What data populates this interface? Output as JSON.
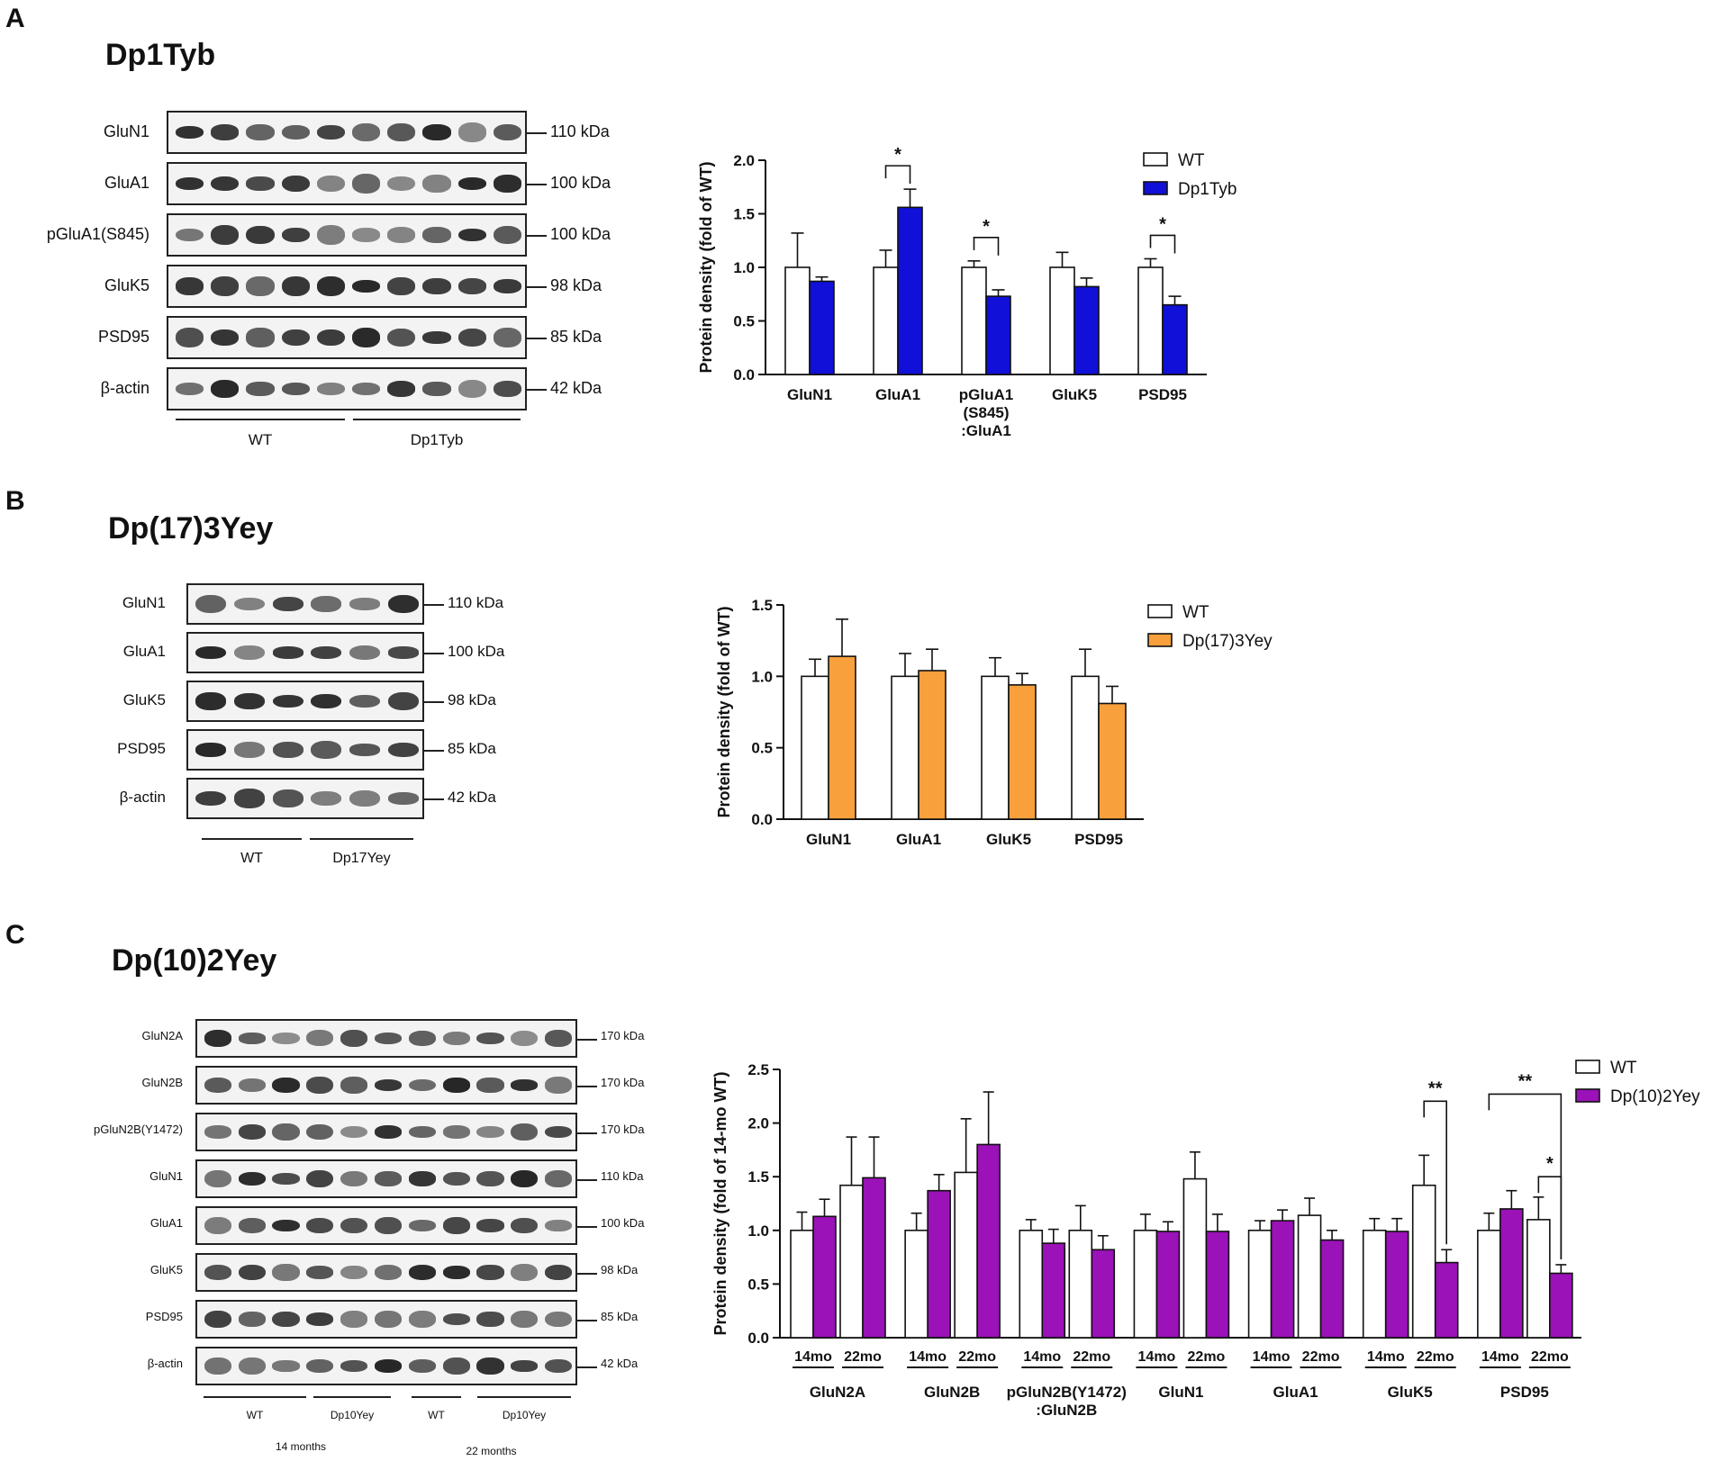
{
  "panels": {
    "A": {
      "letter": "A",
      "title": "Dp1Tyb"
    },
    "B": {
      "letter": "B",
      "title": "Dp(17)3Yey"
    },
    "C": {
      "letter": "C",
      "title": "Dp(10)2Yey"
    }
  },
  "blots": {
    "A": {
      "rows": [
        {
          "label": "GluN1",
          "kda": "110 kDa"
        },
        {
          "label": "GluA1",
          "kda": "100 kDa"
        },
        {
          "label": "pGluA1(S845)",
          "kda": "100 kDa"
        },
        {
          "label": "GluK5",
          "kda": "98 kDa"
        },
        {
          "label": "PSD95",
          "kda": "85 kDa"
        },
        {
          "label": "β-actin",
          "kda": "42 kDa"
        }
      ],
      "groups": [
        "WT",
        "Dp1Tyb"
      ]
    },
    "B": {
      "rows": [
        {
          "label": "GluN1",
          "kda": "110 kDa"
        },
        {
          "label": "GluA1",
          "kda": "100 kDa"
        },
        {
          "label": "GluK5",
          "kda": "98 kDa"
        },
        {
          "label": "PSD95",
          "kda": "85 kDa"
        },
        {
          "label": "β-actin",
          "kda": "42 kDa"
        }
      ],
      "groups": [
        "WT",
        "Dp17Yey"
      ]
    },
    "C": {
      "rows": [
        {
          "label": "GluN2A",
          "kda": "170 kDa"
        },
        {
          "label": "GluN2B",
          "kda": "170 kDa"
        },
        {
          "label": "pGluN2B(Y1472)",
          "kda": "170 kDa"
        },
        {
          "label": "GluN1",
          "kda": "110 kDa"
        },
        {
          "label": "GluA1",
          "kda": "100 kDa"
        },
        {
          "label": "GluK5",
          "kda": "98 kDa"
        },
        {
          "label": "PSD95",
          "kda": "85 kDa"
        },
        {
          "label": "β-actin",
          "kda": "42 kDa"
        }
      ],
      "groups": [
        "WT",
        "Dp10Yey",
        "WT",
        "Dp10Yey"
      ],
      "age_groups": [
        "14 months",
        "22 months"
      ]
    }
  },
  "chart_data": [
    {
      "id": "A",
      "type": "bar",
      "ylabel": "Protein density (fold of WT)",
      "ylim": [
        0,
        2.0
      ],
      "yticks": [
        "0.0",
        "0.5",
        "1.0",
        "1.5",
        "2.0"
      ],
      "categories": [
        "GluN1",
        "GluA1",
        "pGluA1\n(S845)\n:GluA1",
        "GluK5",
        "PSD95"
      ],
      "series": [
        {
          "name": "WT",
          "color": "#ffffff",
          "values": [
            1.0,
            1.0,
            1.0,
            1.0,
            1.0
          ],
          "errors": [
            0.32,
            0.16,
            0.06,
            0.14,
            0.08
          ]
        },
        {
          "name": "Dp1Tyb",
          "color": "#1010d8",
          "values": [
            0.87,
            1.56,
            0.73,
            0.82,
            0.65
          ],
          "errors": [
            0.04,
            0.17,
            0.06,
            0.08,
            0.08
          ]
        }
      ],
      "significance": [
        {
          "category": 1,
          "label": "*"
        },
        {
          "category": 2,
          "label": "*"
        },
        {
          "category": 4,
          "label": "*"
        }
      ],
      "legend": "top-right"
    },
    {
      "id": "B",
      "type": "bar",
      "ylabel": "Protein density (fold of WT)",
      "ylim": [
        0,
        1.5
      ],
      "yticks": [
        "0.0",
        "0.5",
        "1.0",
        "1.5"
      ],
      "categories": [
        "GluN1",
        "GluA1",
        "GluK5",
        "PSD95"
      ],
      "series": [
        {
          "name": "WT",
          "color": "#ffffff",
          "values": [
            1.0,
            1.0,
            1.0,
            1.0
          ],
          "errors": [
            0.12,
            0.16,
            0.13,
            0.19
          ]
        },
        {
          "name": "Dp(17)3Yey",
          "color": "#f7a03c",
          "values": [
            1.14,
            1.04,
            0.94,
            0.81
          ],
          "errors": [
            0.26,
            0.15,
            0.08,
            0.12
          ]
        }
      ],
      "legend": "top-right"
    },
    {
      "id": "C",
      "type": "bar",
      "ylabel": "Protein density (fold of 14-mo WT)",
      "ylim": [
        0,
        2.5
      ],
      "yticks": [
        "0.0",
        "0.5",
        "1.0",
        "1.5",
        "2.0",
        "2.5"
      ],
      "categories": [
        "GluN2A",
        "GluN2B",
        "pGluN2B(Y1472)\n:GluN2B",
        "GluN1",
        "GluA1",
        "GluK5",
        "PSD95"
      ],
      "subgroups": [
        "14mo",
        "22mo"
      ],
      "series": [
        {
          "name": "WT",
          "color": "#ffffff",
          "values_14mo": [
            1.0,
            1.0,
            1.0,
            1.0,
            1.0,
            1.0,
            1.0
          ],
          "errors_14mo": [
            0.17,
            0.16,
            0.1,
            0.15,
            0.09,
            0.11,
            0.16
          ],
          "values_22mo": [
            1.42,
            1.54,
            1.0,
            1.48,
            1.14,
            1.42,
            1.1
          ],
          "errors_22mo": [
            0.45,
            0.5,
            0.23,
            0.25,
            0.16,
            0.28,
            0.21
          ]
        },
        {
          "name": "Dp(10)2Yey",
          "color": "#9a12b8",
          "values_14mo": [
            1.13,
            1.37,
            0.88,
            0.99,
            1.09,
            0.99,
            1.2
          ],
          "errors_14mo": [
            0.16,
            0.15,
            0.13,
            0.09,
            0.1,
            0.12,
            0.17
          ],
          "values_22mo": [
            1.49,
            1.8,
            0.82,
            0.99,
            0.91,
            0.7,
            0.6
          ],
          "errors_22mo": [
            0.38,
            0.49,
            0.13,
            0.16,
            0.09,
            0.12,
            0.08
          ]
        }
      ],
      "significance": [
        {
          "category": 5,
          "label": "**",
          "from": "WT_22mo",
          "to": "Dp_22mo"
        },
        {
          "category": 6,
          "label": "**",
          "from": "WT_14mo",
          "to": "Dp_22mo"
        },
        {
          "category": 6,
          "label": "*",
          "from": "WT_22mo",
          "to": "Dp_22mo"
        }
      ],
      "legend": "top-right"
    }
  ]
}
